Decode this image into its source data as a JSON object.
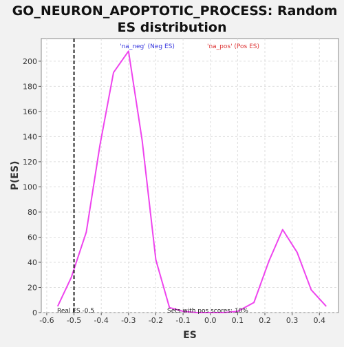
{
  "chart_data": {
    "type": "line",
    "title_lines": [
      "GO_NEURON_APOPTOTIC_PROCESS: Random",
      "ES distribution"
    ],
    "xlabel": "ES",
    "ylabel": "P(ES)",
    "xlim": [
      -0.62,
      0.47
    ],
    "ylim": [
      0,
      218
    ],
    "xticks": [
      -0.6,
      -0.5,
      -0.4,
      -0.3,
      -0.2,
      -0.1,
      0.0,
      0.1,
      0.2,
      0.3,
      0.4
    ],
    "xtick_labels": [
      "-0.6",
      "-0.5",
      "-0.4",
      "-0.3",
      "-0.2",
      "-0.1",
      "0.0",
      "0.1",
      "0.2",
      "0.3",
      "0.4"
    ],
    "yticks": [
      0,
      20,
      40,
      60,
      80,
      100,
      120,
      140,
      160,
      180,
      200
    ],
    "ytick_labels": [
      "0",
      "20",
      "40",
      "60",
      "80",
      "100",
      "120",
      "140",
      "160",
      "180",
      "200"
    ],
    "grid": true,
    "series": [
      {
        "color": "#ee44ee",
        "x": [
          -0.56,
          -0.51,
          -0.455,
          -0.405,
          -0.355,
          -0.3,
          -0.25,
          -0.2,
          -0.15,
          -0.1,
          -0.05,
          0.0,
          0.05,
          0.1,
          0.16,
          0.215,
          0.265,
          0.318,
          0.37,
          0.425
        ],
        "y": [
          5,
          28,
          64,
          133,
          191,
          208,
          137,
          42,
          4,
          1,
          0,
          0,
          0,
          1,
          8,
          41,
          66,
          48,
          18,
          5
        ]
      }
    ],
    "real_es": -0.5,
    "legend": [
      {
        "label": "'na_neg' (Neg ES)",
        "color": "#3333dd"
      },
      {
        "label": "'na_pos' (Pos ES)",
        "color": "#dd3333"
      }
    ],
    "annotations": {
      "real_es_label": "Real ES -0.5",
      "pos_scores_label": "Sets with pos scores: 10%"
    }
  }
}
